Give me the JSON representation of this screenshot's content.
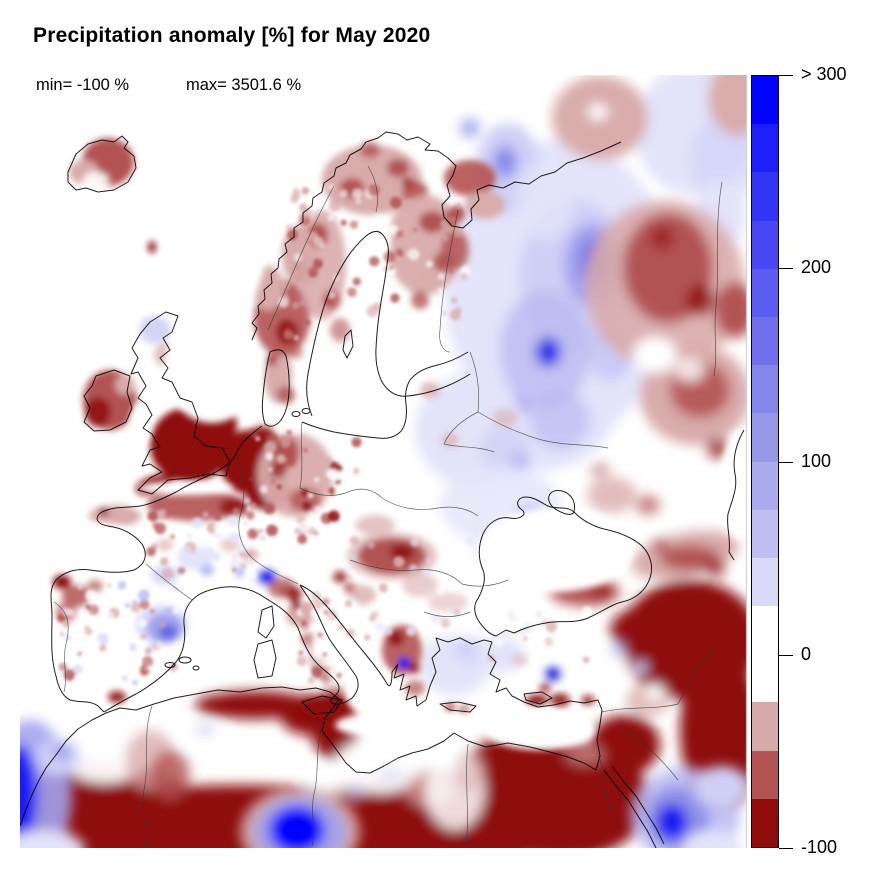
{
  "title": "Precipitation anomaly [%] for May 2020",
  "stats": {
    "min_label": "min= -100 %",
    "max_label": "max= 3501.6 %"
  },
  "chart_data": {
    "type": "heatmap",
    "title": "Precipitation anomaly [%] for May 2020",
    "subject": "Precipitation anomaly over Europe, North Africa and the Middle East",
    "units": "%",
    "period": "May 2020",
    "min_value": -100,
    "max_value": 3501.6,
    "colorbar": {
      "position": "right",
      "orientation": "vertical",
      "value_range": [
        -100,
        300
      ],
      "segment_step": 25,
      "top_label": "> 300",
      "ticks": [
        {
          "label": "> 300",
          "value": 300
        },
        {
          "label": "200",
          "value": 200
        },
        {
          "label": "100",
          "value": 100
        },
        {
          "label": "0",
          "value": 0
        },
        {
          "label": "-100",
          "value": -100
        }
      ],
      "segments": [
        {
          "from": 275,
          "to": 300,
          "color": "#0202FE"
        },
        {
          "from": 250,
          "to": 275,
          "color": "#1E1EF9"
        },
        {
          "from": 225,
          "to": 250,
          "color": "#3434F5"
        },
        {
          "from": 200,
          "to": 225,
          "color": "#4848F2"
        },
        {
          "from": 175,
          "to": 200,
          "color": "#5C5CF0"
        },
        {
          "from": 150,
          "to": 175,
          "color": "#7070ED"
        },
        {
          "from": 125,
          "to": 150,
          "color": "#8585EA"
        },
        {
          "from": 100,
          "to": 125,
          "color": "#9898E8"
        },
        {
          "from": 75,
          "to": 100,
          "color": "#ABABEE"
        },
        {
          "from": 50,
          "to": 75,
          "color": "#BFBFF2"
        },
        {
          "from": 25,
          "to": 50,
          "color": "#DADAF8"
        },
        {
          "from": 0,
          "to": 25,
          "color": "#FFFFFF"
        },
        {
          "from": -25,
          "to": 0,
          "color": "#FFFFFF"
        },
        {
          "from": -50,
          "to": -25,
          "color": "#D7AAAA"
        },
        {
          "from": -75,
          "to": -50,
          "color": "#B25454"
        },
        {
          "from": -100,
          "to": -75,
          "color": "#8F0A0A"
        }
      ]
    },
    "notable_features": [
      {
        "region": "England, Wales, Benelux, NW Germany",
        "anomaly": "strongly dry, near -100%"
      },
      {
        "region": "Ireland, east Iceland, interior Scandinavia, Denmark, N France",
        "anomaly": "dry, -50 to -100%"
      },
      {
        "region": "NW Russia / Baltics / Belarus / Ukraine",
        "anomaly": "wet, +25 to +300%"
      },
      {
        "region": "Hungary, Greece, Caucasus, southern Urals",
        "anomaly": "dry patches, -25 to -75%"
      },
      {
        "region": "North Africa, Egypt, Syria, Arabia",
        "anomaly": "strongly dry, near -100%"
      },
      {
        "region": "Gulf of Sidra (Libya), NW Saudi Arabia / Red Sea, SW Atlantic corner",
        "anomaly": "intense wet spots, > +300%"
      },
      {
        "region": "NE Spain, Liguria, SW Greece spots",
        "anomaly": "local wet maxima, > +100%"
      },
      {
        "region": "Mediterranean Sea, Anatolia, central France, Poland",
        "anomaly": "near normal (white)"
      }
    ]
  }
}
